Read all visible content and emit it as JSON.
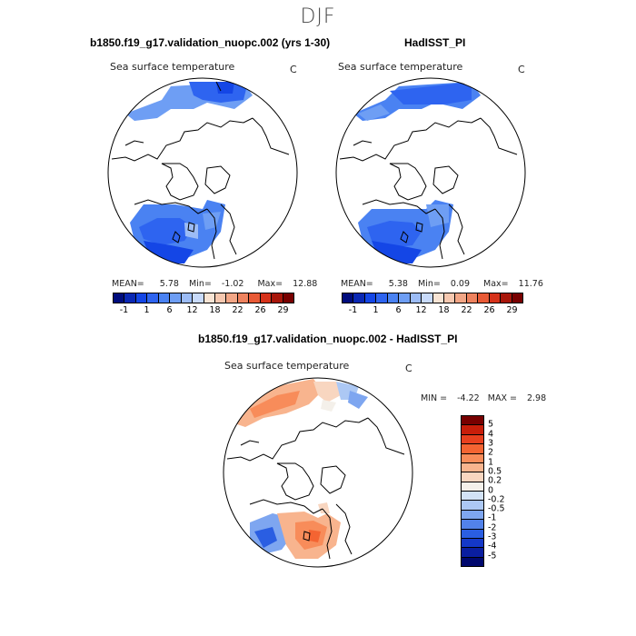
{
  "season": "DJF",
  "panels": [
    {
      "title": "b1850.f19_g17.validation_nuopc.002 (yrs 1-30)",
      "field": "Sea surface temperature",
      "units": "C",
      "mean_label": "MEAN=",
      "mean": "5.78",
      "min_label": "Min=",
      "min": "-1.02",
      "max_label": "Max=",
      "max": "12.88"
    },
    {
      "title": "HadISST_PI",
      "field": "Sea surface temperature",
      "units": "C",
      "mean_label": "MEAN=",
      "mean": "5.38",
      "min_label": "Min=",
      "min": "0.09",
      "max_label": "Max=",
      "max": "11.76"
    }
  ],
  "diff_panel": {
    "title": "b1850.f19_g17.validation_nuopc.002 - HadISST_PI",
    "field": "Sea surface temperature",
    "units": "C",
    "min_label": "MIN =",
    "min": "-4.22",
    "max_label": "MAX =",
    "max": "2.98"
  },
  "abs_colorbar": {
    "colors": [
      "#000c7d",
      "#0a28b4",
      "#1446e6",
      "#2e64f0",
      "#4a82f2",
      "#6e9ef4",
      "#9cbcf6",
      "#c8dafa",
      "#f8e4d4",
      "#f6c8b0",
      "#f2a686",
      "#ee825e",
      "#e85a36",
      "#d6321a",
      "#a8160a",
      "#780000"
    ],
    "tick_labels": [
      "-1",
      "1",
      "6",
      "12",
      "18",
      "22",
      "26",
      "29"
    ]
  },
  "diff_colorbar": {
    "colors": [
      "#780000",
      "#c81e0a",
      "#e8401e",
      "#f46432",
      "#f88c5a",
      "#f8b48e",
      "#f8d6c0",
      "#f4f0ea",
      "#d2e2f6",
      "#acc8f4",
      "#7ea6f0",
      "#5282ea",
      "#2a5ee2",
      "#1438c8",
      "#0a1ea0",
      "#00086e"
    ],
    "tick_labels": [
      "5",
      "4",
      "3",
      "2",
      "1",
      "0.5",
      "0.2",
      "0",
      "-0.2",
      "-0.5",
      "-1",
      "-2",
      "-3",
      "-4",
      "-5"
    ]
  }
}
